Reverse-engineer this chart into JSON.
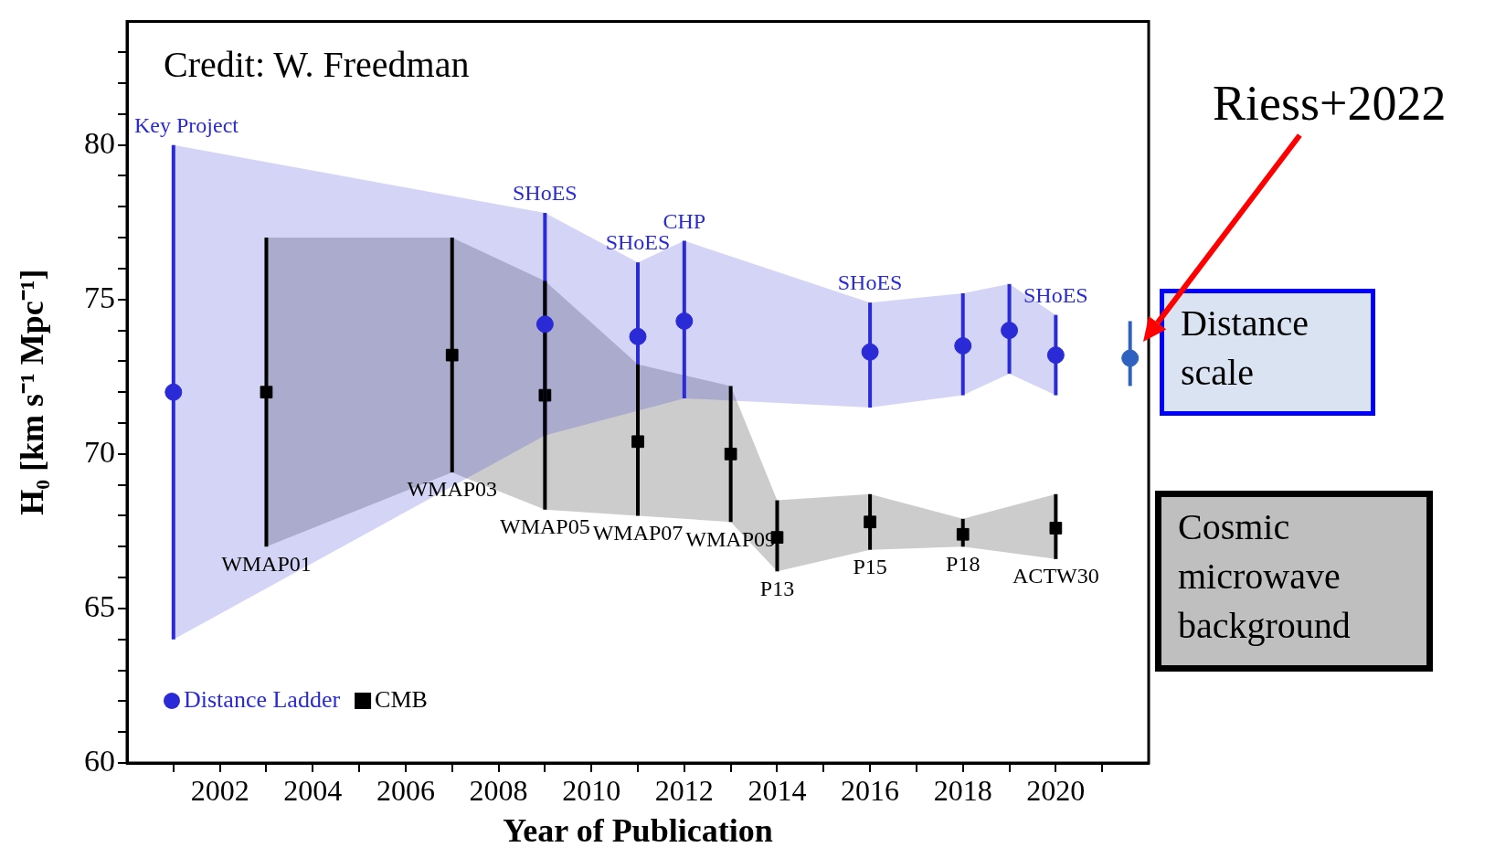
{
  "chart_data": {
    "type": "scatter",
    "xlabel": "Year of Publication",
    "ylabel": "H₀ [km s⁻¹ Mpc⁻¹]",
    "xlim": [
      2000,
      2022
    ],
    "xticks": [
      {
        "value": 2001,
        "label": null
      },
      2002,
      {
        "value": 2003,
        "label": null
      },
      2004,
      {
        "value": 2005,
        "label": null
      },
      2006,
      {
        "value": 2007,
        "label": null
      },
      2008,
      {
        "value": 2009,
        "label": null
      },
      2010,
      {
        "value": 2011,
        "label": null
      },
      2012,
      {
        "value": 2013,
        "label": null
      },
      2014,
      {
        "value": 2015,
        "label": null
      },
      2016,
      {
        "value": 2017,
        "label": null
      },
      2018,
      {
        "value": 2019,
        "label": null
      },
      2020,
      {
        "value": 2021,
        "label": null
      }
    ],
    "ylim": [
      60,
      84
    ],
    "yticks": [
      60,
      {
        "value": 61,
        "label": null
      },
      {
        "value": 62,
        "label": null
      },
      {
        "value": 63,
        "label": null
      },
      {
        "value": 64,
        "label": null
      },
      65,
      {
        "value": 66,
        "label": null
      },
      {
        "value": 67,
        "label": null
      },
      {
        "value": 68,
        "label": null
      },
      {
        "value": 69,
        "label": null
      },
      70,
      {
        "value": 71,
        "label": null
      },
      {
        "value": 72,
        "label": null
      },
      {
        "value": 73,
        "label": null
      },
      {
        "value": 74,
        "label": null
      },
      75,
      {
        "value": 76,
        "label": null
      },
      {
        "value": 77,
        "label": null
      },
      {
        "value": 78,
        "label": null
      },
      {
        "value": 79,
        "label": null
      },
      80,
      {
        "value": 81,
        "label": null
      },
      {
        "value": 82,
        "label": null
      },
      {
        "value": 83,
        "label": null
      }
    ],
    "grid": false,
    "legend": "bottom left",
    "series": [
      {
        "name": "Distance Ladder",
        "color": "#2a2ad6",
        "marker": "circle",
        "x": [
          2001,
          2009,
          2011,
          2012,
          2016,
          2018,
          2019,
          2020
        ],
        "values": [
          72,
          74.2,
          73.8,
          74.3,
          73.3,
          73.5,
          74.0,
          73.2
        ],
        "errors": [
          [
            64,
            80
          ],
          [
            70.6,
            77.8
          ],
          [
            71.4,
            76.2
          ],
          [
            71.8,
            76.9
          ],
          [
            71.5,
            74.9
          ],
          [
            71.9,
            75.2
          ],
          [
            72.6,
            75.5
          ],
          [
            71.9,
            74.5
          ]
        ],
        "lower": [
          64,
          70.6,
          71.4,
          71.8,
          71.5,
          71.9,
          72.6,
          71.9
        ],
        "upper": [
          80,
          77.8,
          76.2,
          76.9,
          74.9,
          75.2,
          75.5,
          74.5
        ]
      },
      {
        "name": "CMB",
        "color": "#000000",
        "marker": "square",
        "x": [
          2003,
          2007,
          2009,
          2011,
          2013,
          2014,
          2016,
          2018,
          2020
        ],
        "values": [
          72,
          73.2,
          71.9,
          70.4,
          70.0,
          67.3,
          67.8,
          67.4,
          67.6
        ],
        "errors": [
          [
            67,
            77
          ],
          [
            69.4,
            77
          ],
          [
            68.2,
            75.6
          ],
          [
            68,
            72.9
          ],
          [
            67.8,
            72.2
          ],
          [
            66.2,
            68.5
          ],
          [
            66.9,
            68.7
          ],
          [
            67,
            67.9
          ],
          [
            66.6,
            68.7
          ]
        ],
        "lower": [
          67,
          69.4,
          68.2,
          68,
          67.8,
          66.2,
          66.9,
          67,
          66.6
        ],
        "upper": [
          77,
          77,
          75.6,
          72.9,
          72.2,
          68.5,
          68.7,
          67.9,
          68.7
        ]
      },
      {
        "color": "#2f62c0",
        "marker": "circle",
        "x": [
          2021.6
        ],
        "values": [
          73.1
        ],
        "errors": [
          [
            72.2,
            74.3
          ]
        ]
      }
    ],
    "annotations": [
      "Credit: W. Freedman",
      "Distance scale",
      "Cosmic microwave background",
      "Riess+2022",
      {
        "text": "Key Project",
        "x": 2001,
        "y": 80
      },
      {
        "text": "SHoES",
        "x": 2009,
        "y": 77.8
      },
      {
        "text": "SHoES",
        "x": 2011,
        "y": 76.2
      },
      {
        "text": "CHP",
        "x": 2012,
        "y": 76.9
      },
      {
        "text": "SHoES",
        "x": 2016,
        "y": 74.9
      },
      {
        "text": "SHoES",
        "x": 2020,
        "y": 74.5
      },
      {
        "text": "WMAP01",
        "x": 2003,
        "y": 67
      },
      {
        "text": "WMAP03",
        "x": 2007,
        "y": 69.4
      },
      {
        "text": "WMAP05",
        "x": 2009,
        "y": 68.2
      },
      {
        "text": "WMAP07",
        "x": 2011,
        "y": 68
      },
      {
        "text": "WMAP09",
        "x": 2013,
        "y": 67.8
      },
      {
        "text": "P13",
        "x": 2014,
        "y": 66.2
      },
      {
        "text": "P15",
        "x": 2016,
        "y": 66.9
      },
      {
        "text": "P18",
        "x": 2018,
        "y": 67
      },
      {
        "text": "ACTW30",
        "x": 2020,
        "y": 66.6
      }
    ]
  }
}
